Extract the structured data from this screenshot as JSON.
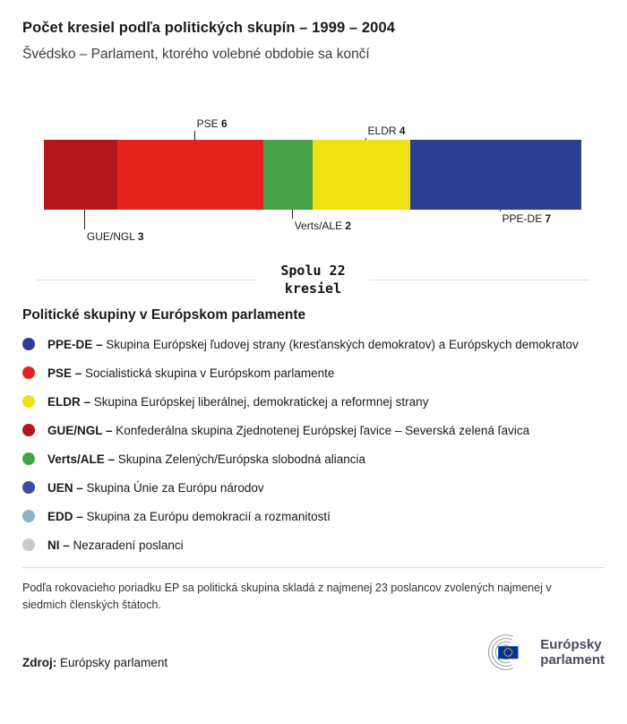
{
  "header": {
    "title": "Počet kresiel podľa politických skupín – 1999 – 2004",
    "subtitle": "Švédsko – Parlament, ktorého volebné obdobie sa končí"
  },
  "chart_data": {
    "type": "bar",
    "stacked": true,
    "orientation": "horizontal",
    "categories": [
      "GUE/NGL",
      "PSE",
      "Verts/ALE",
      "ELDR",
      "PPE-DE"
    ],
    "values": [
      3,
      6,
      2,
      4,
      7
    ],
    "total_seats": 22,
    "segments": [
      {
        "group": "GUE/NGL",
        "seats": 3,
        "color": "#b3171b"
      },
      {
        "group": "PSE",
        "seats": 6,
        "color": "#e2231e"
      },
      {
        "group": "Verts/ALE",
        "seats": 2,
        "color": "#46a149"
      },
      {
        "group": "ELDR",
        "seats": 4,
        "color": "#f0e114"
      },
      {
        "group": "PPE-DE",
        "seats": 7,
        "color": "#2c3f90"
      }
    ]
  },
  "summary": {
    "line1": "Spolu 22",
    "line2": "kresiel"
  },
  "legend": {
    "title": "Politické skupiny v Európskom parlamente",
    "items": [
      {
        "abbr": "PPE-DE –",
        "desc": "Skupina Európskej ľudovej strany (kresťanských demokratov) a Európskych demokratov",
        "color": "#2c3f90"
      },
      {
        "abbr": "PSE –",
        "desc": "Socialistická skupina v Európskom parlamente",
        "color": "#e2231e"
      },
      {
        "abbr": "ELDR –",
        "desc": "Skupina Európskej liberálnej, demokratickej a reformnej strany",
        "color": "#f0e114"
      },
      {
        "abbr": "GUE/NGL –",
        "desc": "Konfederálna skupina Zjednotenej Európskej ľavice – Severská zelená ľavica",
        "color": "#b3171b"
      },
      {
        "abbr": "Verts/ALE –",
        "desc": "Skupina Zelených/Európska slobodná aliancia",
        "color": "#46a149"
      },
      {
        "abbr": "UEN –",
        "desc": "Skupina Únie za Európu národov",
        "color": "#38509e"
      },
      {
        "abbr": "EDD –",
        "desc": "Skupina za Európu demokracií a rozmanitostí",
        "color": "#8fb2c9"
      },
      {
        "abbr": "NI –",
        "desc": "Nezaradení poslanci",
        "color": "#c9c9c9"
      }
    ]
  },
  "footnote": "Podľa rokovacieho poriadku EP sa politická skupina skladá z najmenej 23 poslancov zvolených najmenej v siedmich členských štátoch.",
  "source": {
    "label": "Zdroj:",
    "value": "Európsky parlament"
  },
  "logo": {
    "line1": "Európsky",
    "line2": "parlament"
  }
}
